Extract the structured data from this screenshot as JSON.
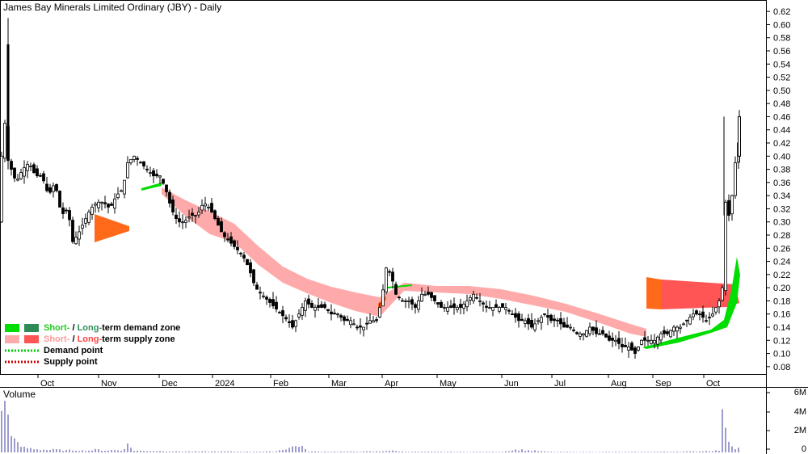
{
  "chart_data": {
    "type": "candlestick",
    "title": "James Bay Minerals Limited Ordinary (JBY) - Daily",
    "price_axis": {
      "ticks": [
        "0.08",
        "0.10",
        "0.12",
        "0.14",
        "0.16",
        "0.18",
        "0.20",
        "0.22",
        "0.24",
        "0.26",
        "0.28",
        "0.30",
        "0.32",
        "0.34",
        "0.36",
        "0.38",
        "0.40",
        "0.42",
        "0.44",
        "0.46",
        "0.48",
        "0.50",
        "0.52",
        "0.54",
        "0.56",
        "0.58",
        "0.60",
        "0.62"
      ],
      "range": [
        0.07,
        0.63
      ]
    },
    "volume_axis": {
      "label": "Volume",
      "ticks": [
        "0",
        "2M",
        "4M",
        "6M"
      ],
      "range": [
        0,
        6000000
      ]
    },
    "x_axis": {
      "labels": [
        "Oct",
        "Nov",
        "Dec",
        "2024",
        "Feb",
        "Mar",
        "Apr",
        "May",
        "Jun",
        "Jul",
        "Aug",
        "Sep",
        "Oct"
      ]
    },
    "legend": [
      {
        "items": [
          "Short-",
          " / ",
          "Long-",
          "term demand zone"
        ],
        "colors": [
          "#22cc22",
          "#000000",
          "#2f8f5a",
          "#000000"
        ],
        "swatches": [
          "#00dd00",
          "#2e8b57"
        ]
      },
      {
        "items": [
          "Short-",
          " / ",
          "Long-",
          "term supply zone"
        ],
        "colors": [
          "#ff9999",
          "#000000",
          "#ff4444",
          "#000000"
        ],
        "swatches": [
          "#ffaaaa",
          "#ff5555"
        ]
      },
      {
        "items": [
          "Demand point"
        ],
        "colors": [
          "#000000"
        ],
        "swatches": [
          "#00cc00"
        ]
      },
      {
        "items": [
          "Supply point"
        ],
        "colors": [
          "#000000"
        ],
        "swatches": [
          "#cc0000"
        ]
      }
    ],
    "series": [
      {
        "type": "candles",
        "anchors": [
          [
            0,
            0.3
          ],
          [
            4,
            0.5
          ],
          [
            8,
            0.4
          ],
          [
            14,
            0.38
          ],
          [
            20,
            0.36
          ],
          [
            28,
            0.38
          ],
          [
            36,
            0.39
          ],
          [
            44,
            0.37
          ],
          [
            52,
            0.37
          ],
          [
            60,
            0.34
          ],
          [
            68,
            0.36
          ],
          [
            76,
            0.31
          ],
          [
            84,
            0.32
          ],
          [
            90,
            0.27
          ],
          [
            96,
            0.28
          ],
          [
            104,
            0.3
          ],
          [
            112,
            0.32
          ],
          [
            120,
            0.33
          ],
          [
            128,
            0.33
          ],
          [
            136,
            0.32
          ],
          [
            144,
            0.34
          ],
          [
            152,
            0.35
          ],
          [
            158,
            0.39
          ],
          [
            166,
            0.4
          ],
          [
            174,
            0.39
          ],
          [
            182,
            0.38
          ],
          [
            190,
            0.37
          ],
          [
            198,
            0.37
          ],
          [
            205,
            0.35
          ],
          [
            212,
            0.32
          ],
          [
            220,
            0.3
          ],
          [
            228,
            0.3
          ],
          [
            236,
            0.31
          ],
          [
            244,
            0.31
          ],
          [
            252,
            0.33
          ],
          [
            260,
            0.32
          ],
          [
            268,
            0.3
          ],
          [
            276,
            0.28
          ],
          [
            284,
            0.27
          ],
          [
            292,
            0.26
          ],
          [
            300,
            0.25
          ],
          [
            308,
            0.23
          ],
          [
            316,
            0.2
          ],
          [
            324,
            0.19
          ],
          [
            332,
            0.18
          ],
          [
            340,
            0.17
          ],
          [
            348,
            0.16
          ],
          [
            356,
            0.15
          ],
          [
            362,
            0.14
          ],
          [
            370,
            0.16
          ],
          [
            378,
            0.18
          ],
          [
            386,
            0.17
          ],
          [
            394,
            0.17
          ],
          [
            402,
            0.17
          ],
          [
            410,
            0.16
          ],
          [
            418,
            0.16
          ],
          [
            426,
            0.15
          ],
          [
            434,
            0.15
          ],
          [
            442,
            0.14
          ],
          [
            450,
            0.14
          ],
          [
            458,
            0.15
          ],
          [
            466,
            0.15
          ],
          [
            472,
            0.18
          ],
          [
            478,
            0.23
          ],
          [
            484,
            0.22
          ],
          [
            490,
            0.19
          ],
          [
            498,
            0.18
          ],
          [
            506,
            0.18
          ],
          [
            514,
            0.17
          ],
          [
            522,
            0.19
          ],
          [
            530,
            0.19
          ],
          [
            538,
            0.18
          ],
          [
            546,
            0.17
          ],
          [
            554,
            0.17
          ],
          [
            562,
            0.17
          ],
          [
            570,
            0.17
          ],
          [
            578,
            0.18
          ],
          [
            586,
            0.19
          ],
          [
            594,
            0.18
          ],
          [
            602,
            0.17
          ],
          [
            610,
            0.17
          ],
          [
            618,
            0.17
          ],
          [
            626,
            0.17
          ],
          [
            634,
            0.16
          ],
          [
            642,
            0.15
          ],
          [
            650,
            0.15
          ],
          [
            658,
            0.14
          ],
          [
            666,
            0.15
          ],
          [
            674,
            0.16
          ],
          [
            682,
            0.15
          ],
          [
            690,
            0.15
          ],
          [
            698,
            0.14
          ],
          [
            706,
            0.14
          ],
          [
            714,
            0.13
          ],
          [
            722,
            0.13
          ],
          [
            730,
            0.14
          ],
          [
            738,
            0.13
          ],
          [
            746,
            0.13
          ],
          [
            754,
            0.12
          ],
          [
            762,
            0.12
          ],
          [
            770,
            0.11
          ],
          [
            778,
            0.11
          ],
          [
            786,
            0.1
          ],
          [
            794,
            0.12
          ],
          [
            802,
            0.12
          ],
          [
            810,
            0.12
          ],
          [
            818,
            0.13
          ],
          [
            826,
            0.13
          ],
          [
            834,
            0.14
          ],
          [
            842,
            0.14
          ],
          [
            850,
            0.15
          ],
          [
            858,
            0.16
          ],
          [
            866,
            0.16
          ],
          [
            874,
            0.15
          ],
          [
            882,
            0.16
          ],
          [
            890,
            0.18
          ],
          [
            894,
            0.2
          ],
          [
            896,
            0.34
          ],
          [
            900,
            0.32
          ],
          [
            904,
            0.3
          ],
          [
            908,
            0.38
          ],
          [
            912,
            0.4
          ],
          [
            916,
            0.44
          ]
        ]
      },
      {
        "type": "volume",
        "anchors": [
          [
            0,
            5.2
          ],
          [
            4,
            5.0
          ],
          [
            8,
            4.6
          ],
          [
            12,
            3.2
          ],
          [
            16,
            1.5
          ],
          [
            20,
            1.0
          ],
          [
            24,
            0.7
          ],
          [
            30,
            0.5
          ],
          [
            40,
            0.4
          ],
          [
            50,
            0.3
          ],
          [
            60,
            0.25
          ],
          [
            70,
            0.3
          ],
          [
            80,
            0.2
          ],
          [
            90,
            0.25
          ],
          [
            100,
            0.2
          ],
          [
            110,
            0.2
          ],
          [
            120,
            0.3
          ],
          [
            130,
            0.2
          ],
          [
            140,
            0.25
          ],
          [
            150,
            0.2
          ],
          [
            158,
            0.8
          ],
          [
            166,
            0.2
          ],
          [
            180,
            0.15
          ],
          [
            200,
            0.15
          ],
          [
            220,
            0.1
          ],
          [
            260,
            0.1
          ],
          [
            300,
            0.08
          ],
          [
            340,
            0.08
          ],
          [
            372,
            0.8
          ],
          [
            380,
            0.1
          ],
          [
            420,
            0.08
          ],
          [
            470,
            0.1
          ],
          [
            480,
            0.2
          ],
          [
            500,
            0.08
          ],
          [
            560,
            0.06
          ],
          [
            620,
            0.06
          ],
          [
            640,
            0.3
          ],
          [
            680,
            0.06
          ],
          [
            740,
            0.05
          ],
          [
            800,
            0.06
          ],
          [
            860,
            0.1
          ],
          [
            890,
            0.2
          ],
          [
            896,
            5.2
          ],
          [
            900,
            1.6
          ],
          [
            904,
            1.0
          ],
          [
            908,
            0.6
          ],
          [
            912,
            0.4
          ],
          [
            916,
            0.5
          ]
        ]
      }
    ],
    "zones": [
      {
        "name": "short-term supply",
        "color": "#ffaaaa"
      },
      {
        "name": "long-term supply",
        "color": "#ff5555"
      },
      {
        "name": "short-term demand",
        "color": "#00dd00"
      },
      {
        "name": "long-term supply",
        "color": "#ff6a1a"
      }
    ],
    "grid": false
  }
}
